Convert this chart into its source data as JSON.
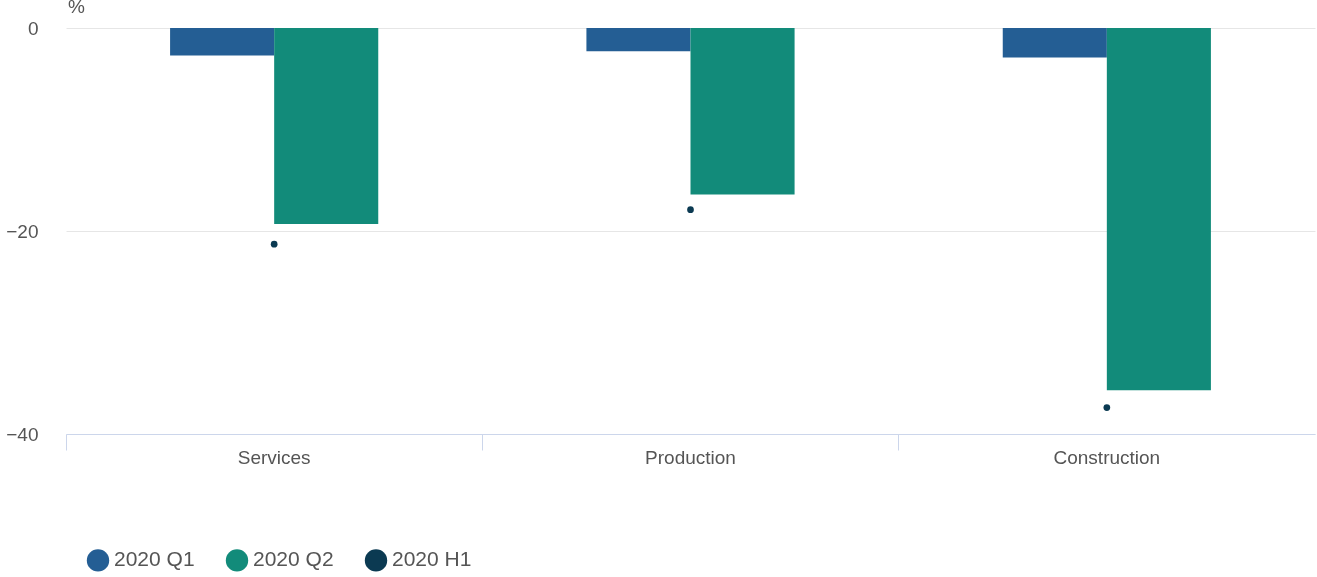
{
  "chart_data": {
    "type": "bar",
    "ylabel": "%",
    "categories": [
      "Services",
      "Production",
      "Construction"
    ],
    "series": [
      {
        "name": "2020 Q1",
        "color": "#245e94",
        "values": [
          -2.7,
          -2.3,
          -2.9
        ]
      },
      {
        "name": "2020 Q2",
        "color": "#128b7a",
        "values": [
          -19.3,
          -16.4,
          -35.7
        ]
      },
      {
        "name": "2020 H1",
        "type": "scatter",
        "color": "#0b3a52",
        "values": [
          -21.3,
          -17.9,
          -37.4
        ]
      }
    ],
    "ylim": [
      -40,
      0
    ],
    "yticks": [
      -40,
      -20,
      0
    ],
    "grid": "y",
    "legend": "bottom left",
    "marker": "circle"
  }
}
